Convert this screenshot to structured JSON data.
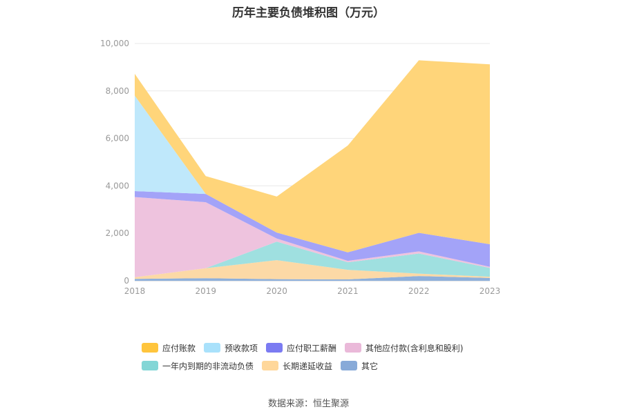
{
  "chart_data": {
    "type": "area",
    "stacked": true,
    "title": "历年主要负债堆积图（万元）",
    "x": [
      "2018",
      "2019",
      "2020",
      "2021",
      "2022",
      "2023"
    ],
    "ylim": [
      0,
      10000
    ],
    "yticks": [
      "0",
      "2,000",
      "4,000",
      "6,000",
      "8,000",
      "10,000"
    ],
    "grid": true,
    "legend_position": "bottom",
    "series": [
      {
        "name": "其它",
        "color": "#8eb0dc",
        "values": [
          80,
          110,
          70,
          60,
          200,
          120
        ]
      },
      {
        "name": "长期递延收益",
        "color": "#fcd9a6",
        "values": [
          70,
          420,
          800,
          400,
          100,
          50
        ]
      },
      {
        "name": "一年内到期的非流动负债",
        "color": "#9fe0e0",
        "values": [
          0,
          0,
          780,
          320,
          850,
          370
        ]
      },
      {
        "name": "其他应付款(含利息和股利)",
        "color": "#eec3de",
        "values": [
          3380,
          2780,
          130,
          60,
          90,
          50
        ]
      },
      {
        "name": "应付职工薪酬",
        "color": "#a3a3f8",
        "values": [
          250,
          350,
          250,
          360,
          780,
          950
        ]
      },
      {
        "name": "预收款项",
        "color": "#bfe8fb",
        "values": [
          4020,
          0,
          0,
          0,
          0,
          0
        ]
      },
      {
        "name": "应付账款",
        "color": "#ffd57a",
        "values": [
          920,
          750,
          1520,
          4500,
          7270,
          7580
        ]
      }
    ],
    "legend_order": [
      "应付账款",
      "预收款项",
      "应付职工薪酬",
      "其他应付款(含利息和股利)",
      "一年内到期的非流动负债",
      "长期递延收益",
      "其它"
    ],
    "legend_colors": {
      "应付账款": "#ffc53d",
      "预收款项": "#a9e1fb",
      "应付职工薪酬": "#7b7bf2",
      "其他应付款(含利息和股利)": "#eab9d9",
      "一年内到期的非流动负债": "#83d6d6",
      "长期递延收益": "#ffd79a",
      "其它": "#88aad8"
    }
  },
  "source_text": "数据来源：恒生聚源"
}
